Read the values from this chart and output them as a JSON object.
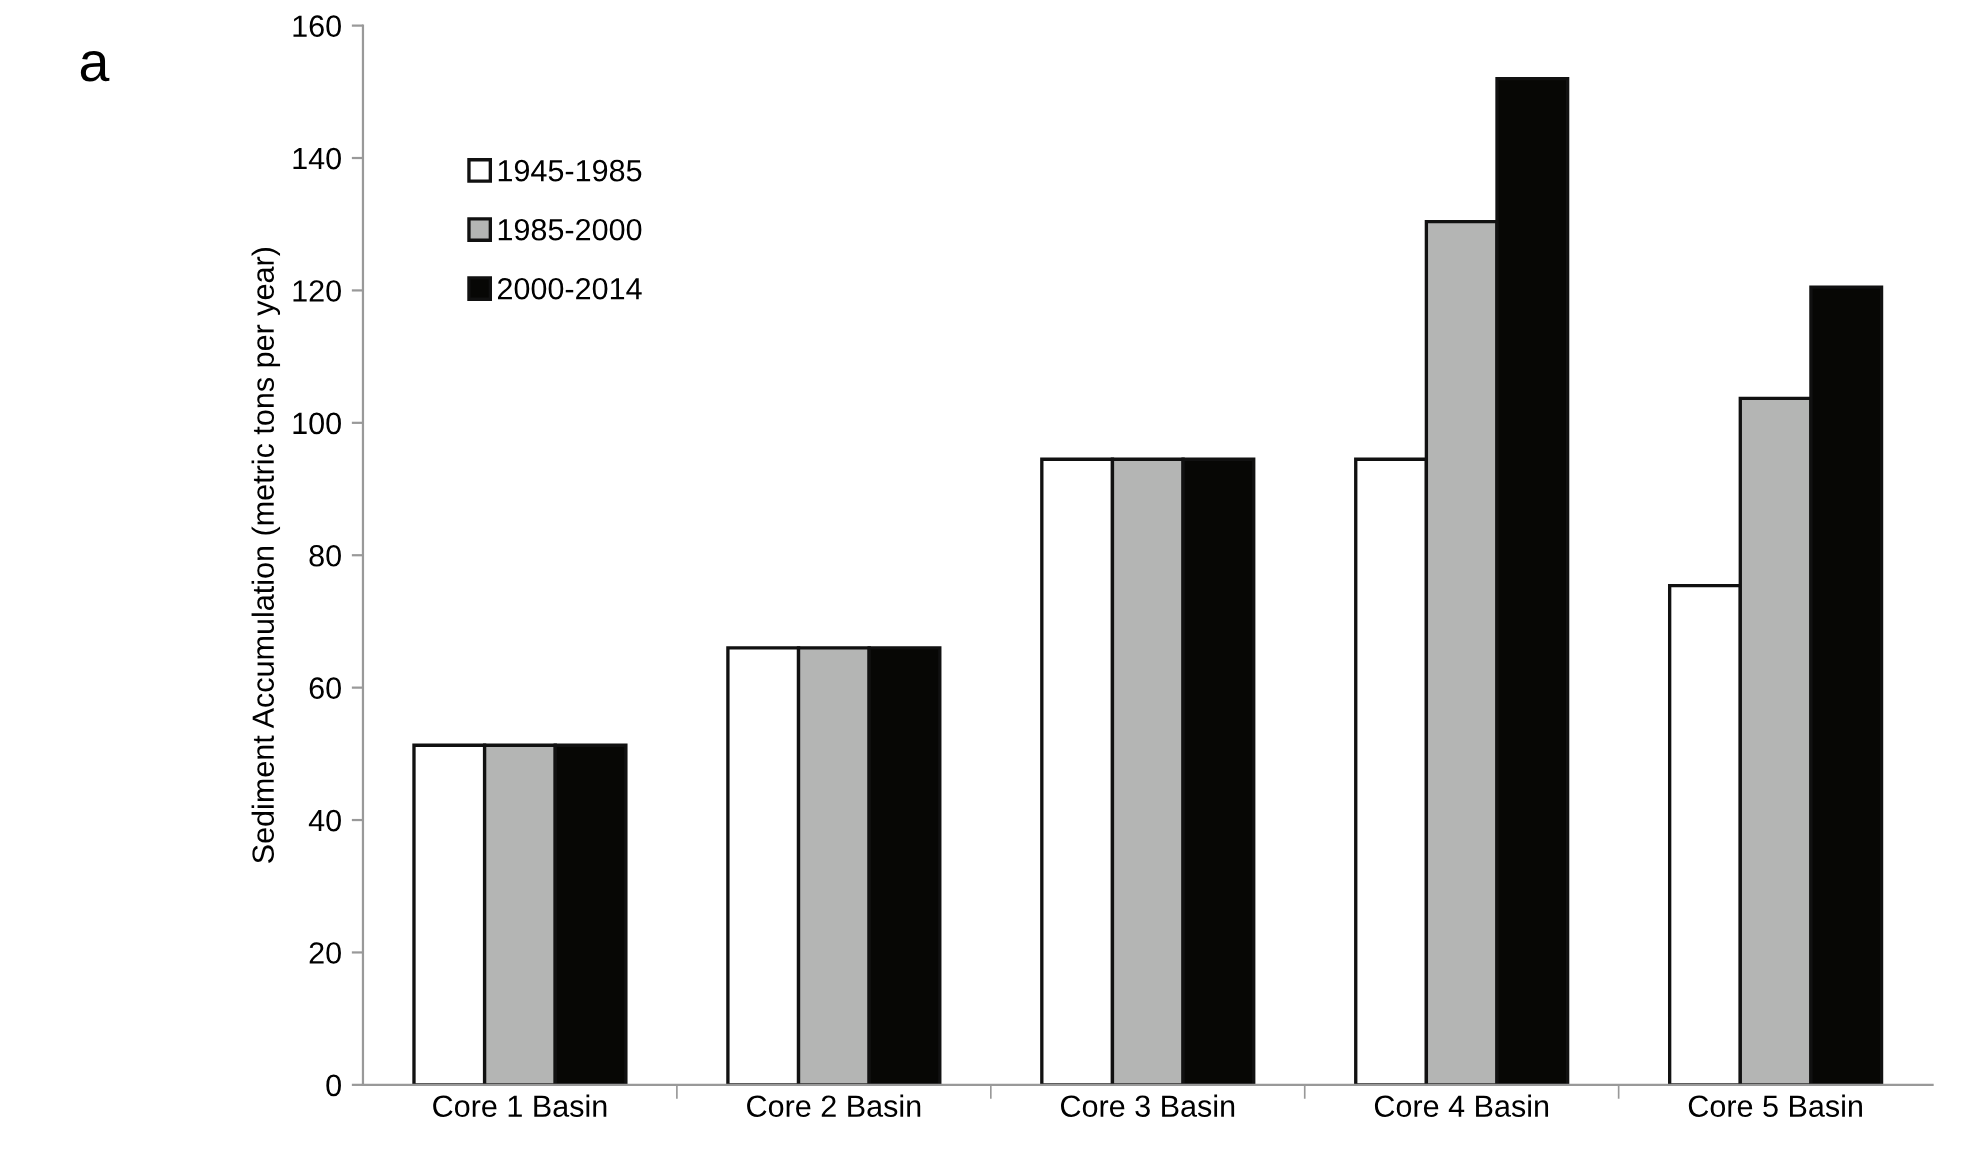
{
  "chart_data": {
    "type": "bar",
    "ylabel": "Sediment Accumulation (metric tons per year)",
    "annotations": [
      "a"
    ],
    "categories": [
      "Core 1 Basin",
      "Core 2 Basin",
      "Core 3 Basin",
      "Core 4 Basin",
      "Core 5 Basin"
    ],
    "series": [
      {
        "name": "1945-1985",
        "color": "#ffffff",
        "values": [
          51.3,
          66,
          94.5,
          94.5,
          75.4
        ]
      },
      {
        "name": "1985-2000",
        "color": "#b4b5b4",
        "values": [
          51.3,
          66,
          94.5,
          130.4,
          103.7
        ]
      },
      {
        "name": "2000-2014",
        "color": "#070705",
        "values": [
          51.3,
          66,
          94.5,
          152,
          120.5
        ]
      }
    ],
    "ylim": [
      0,
      160
    ],
    "yticks": [
      0,
      20,
      40,
      60,
      80,
      100,
      120,
      140,
      160
    ],
    "grid": false,
    "legend": "top left"
  }
}
